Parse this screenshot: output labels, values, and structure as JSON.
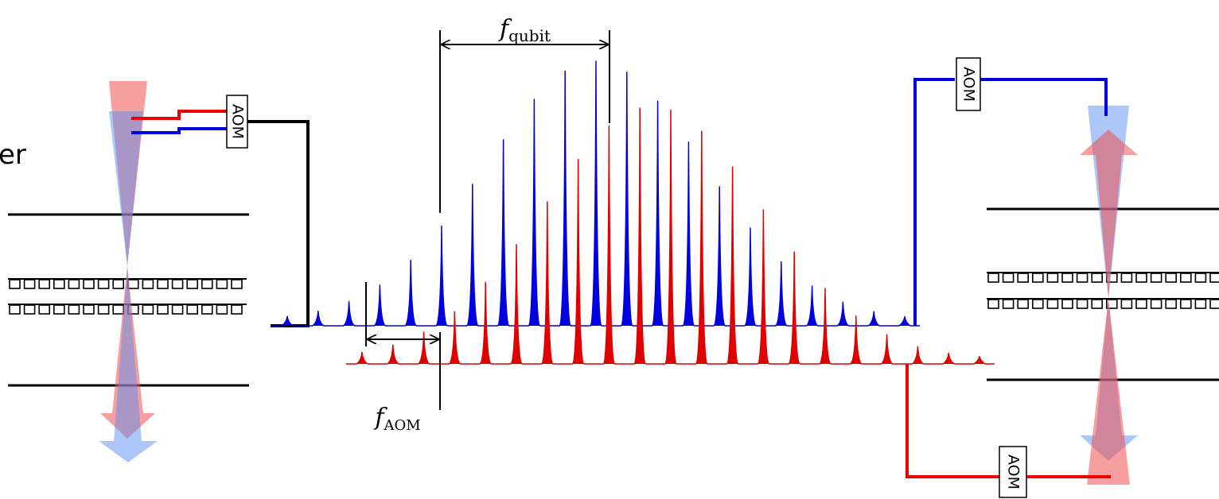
{
  "left_label": "er",
  "aom_labels": [
    "AOM",
    "AOM",
    "AOM"
  ],
  "f_qubit": {
    "symbol": "f",
    "subscript": "qubit"
  },
  "f_aom": {
    "symbol": "f",
    "subscript": "AOM"
  }
}
